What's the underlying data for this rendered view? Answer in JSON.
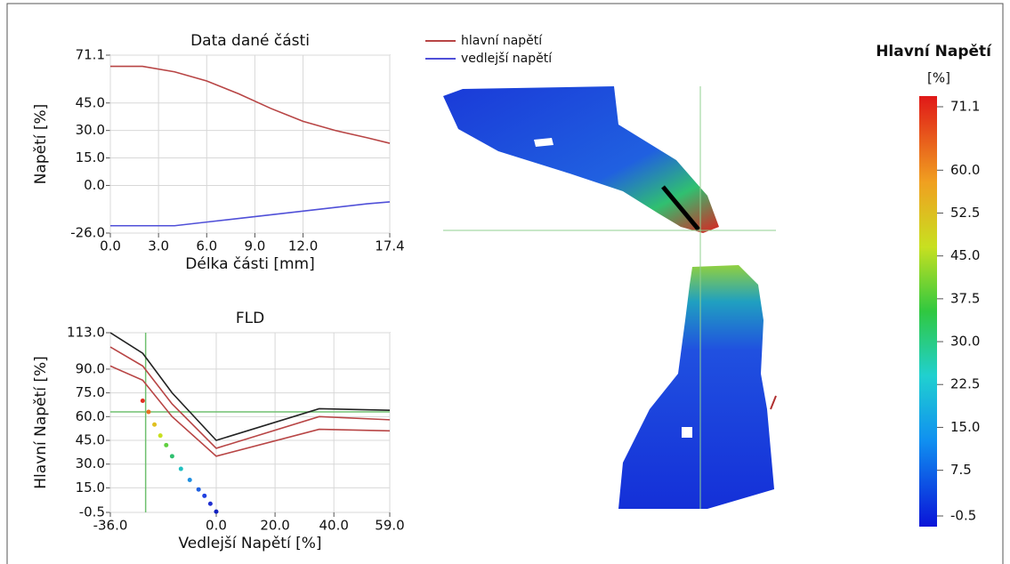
{
  "chart_data": [
    {
      "type": "line",
      "title": "Data dané části",
      "x_label": "Délka části [mm]",
      "y_label": "Napětí [%]",
      "x": [
        0,
        2,
        4,
        6,
        8,
        10,
        12,
        14,
        16,
        17.4
      ],
      "xlim": [
        0,
        17.4
      ],
      "xticks": [
        {
          "value": 0,
          "label": "0.0"
        },
        {
          "value": 3,
          "label": "3.0"
        },
        {
          "value": 6,
          "label": "6.0"
        },
        {
          "value": 9,
          "label": "9.0"
        },
        {
          "value": 12,
          "label": "12.0"
        },
        17.4
      ],
      "ylim": [
        -26,
        71.1
      ],
      "yticks": [
        71.1,
        {
          "value": 45,
          "label": "45.0"
        },
        {
          "value": 30,
          "label": "30.0"
        },
        {
          "value": 15,
          "label": "15.0"
        },
        {
          "value": 0,
          "label": "0.0"
        },
        {
          "value": -26,
          "label": "-26.0"
        }
      ],
      "grid": true,
      "series": [
        {
          "name": "hlavní napětí",
          "color": "#b84545",
          "values": [
            65,
            65,
            62,
            57,
            50,
            42,
            35,
            30,
            26,
            23
          ]
        },
        {
          "name": "vedlejší napětí",
          "color": "#5050d8",
          "values": [
            -22,
            -22,
            -22,
            -20,
            -18,
            -16,
            -14,
            -12,
            -10,
            -9
          ]
        }
      ]
    },
    {
      "type": "line",
      "title": "FLD",
      "x_label": "Vedlejší Napětí  [%]",
      "y_label": "Hlavní Napětí [%]",
      "xlim": [
        -36,
        59
      ],
      "xticks": [
        {
          "value": -36,
          "label": "-36.0"
        },
        {
          "value": 0,
          "label": "0.0"
        },
        {
          "value": 20,
          "label": "20.0"
        },
        {
          "value": 40,
          "label": "40.0"
        },
        {
          "value": 59,
          "label": "59.0"
        }
      ],
      "ylim": [
        -0.5,
        113
      ],
      "yticks": [
        {
          "value": 113,
          "label": "113.0"
        },
        {
          "value": 90,
          "label": "90.0"
        },
        {
          "value": 75,
          "label": "75.0"
        },
        {
          "value": 60,
          "label": "60.0"
        },
        {
          "value": 45,
          "label": "45.0"
        },
        {
          "value": 30,
          "label": "30.0"
        },
        {
          "value": 15,
          "label": "15.0"
        },
        -0.5
      ],
      "grid": true,
      "series": [
        {
          "color": "#222222",
          "x": [
            -36,
            -25,
            -15,
            0,
            35,
            59
          ],
          "values": [
            113,
            100,
            75,
            45,
            65,
            64
          ]
        },
        {
          "color": "#b84545",
          "x": [
            -36,
            -25,
            -15,
            0,
            35,
            59
          ],
          "values": [
            104,
            92,
            68,
            40,
            60,
            58
          ]
        },
        {
          "color": "#b84545",
          "x": [
            -36,
            -25,
            -15,
            0,
            35,
            59
          ],
          "values": [
            92,
            83,
            60,
            35,
            52,
            51
          ]
        }
      ],
      "points": {
        "x": [
          -25,
          -23,
          -21,
          -19,
          -17,
          -15,
          -12,
          -9,
          -6,
          -4,
          -2,
          0
        ],
        "y": [
          70,
          63,
          55,
          48,
          42,
          35,
          27,
          20,
          14,
          10,
          5,
          0
        ],
        "colors": [
          "#e03020",
          "#e87020",
          "#e0c020",
          "#c8e020",
          "#60d040",
          "#30c070",
          "#20c0c0",
          "#2090e0",
          "#2060e0",
          "#2040e0",
          "#2030d0",
          "#1020c0"
        ]
      },
      "crosshair": {
        "x": -24,
        "y": 63
      }
    }
  ],
  "colorbar": {
    "title": "Hlavní Napětí",
    "unit": "[%]",
    "lim": [
      -0.5,
      71.1
    ],
    "ticks": [
      71.1,
      {
        "value": 60,
        "label": "60.0"
      },
      52.5,
      {
        "value": 45,
        "label": "45.0"
      },
      37.5,
      {
        "value": 30,
        "label": "30.0"
      },
      22.5,
      {
        "value": 15,
        "label": "15.0"
      },
      7.5,
      -0.5
    ]
  }
}
